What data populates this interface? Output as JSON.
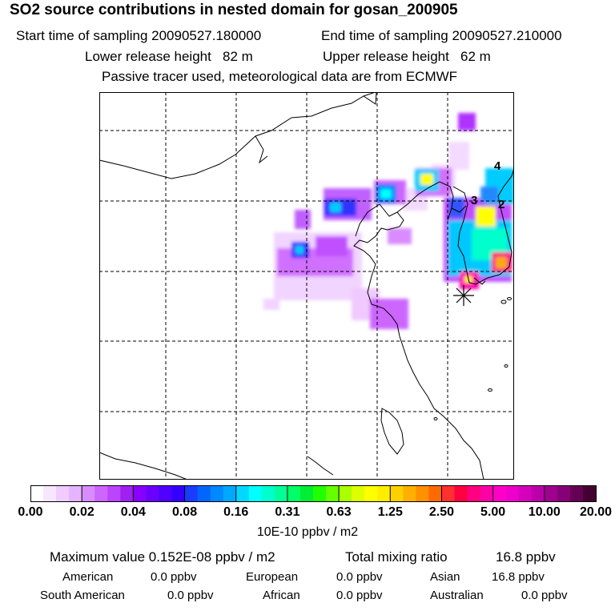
{
  "header": {
    "title": "SO2 source contributions in nested domain for gosan_200905",
    "start_label": "Start time of sampling 20090527.180000",
    "end_label": "End time of sampling 20090527.210000",
    "lower_label": "Lower release height   82 m",
    "upper_label": "Upper release height   62 m",
    "note": "Passive tracer used, meteorological data are from ECMWF"
  },
  "map": {
    "region_labels": [
      "4",
      "3",
      "2"
    ],
    "receptor_marker": "asterisk-icon"
  },
  "colorbar": {
    "ticks": [
      "0.00",
      "0.02",
      "0.04",
      "0.08",
      "0.16",
      "0.31",
      "0.63",
      "1.25",
      "2.50",
      "5.00",
      "10.00",
      "20.00"
    ],
    "unit": "10E-10 ppbv / m2",
    "colors": [
      "#ffffff",
      "#f7e6ff",
      "#f0ccff",
      "#e6b3ff",
      "#d98cff",
      "#cc66ff",
      "#bb44ff",
      "#a020f0",
      "#8800ff",
      "#6a00ff",
      "#4f00ff",
      "#3300ff",
      "#1a3cff",
      "#0066ff",
      "#0088ff",
      "#00a8ff",
      "#00d8ff",
      "#00ffff",
      "#00ffcc",
      "#00ff99",
      "#00ff66",
      "#00ee33",
      "#22ff00",
      "#66ff00",
      "#aaff00",
      "#ddff00",
      "#ffff00",
      "#ffee00",
      "#ffd000",
      "#ffb000",
      "#ff9000",
      "#ff6a00",
      "#ff3030",
      "#ff0040",
      "#ff0080",
      "#ff00a8",
      "#ff00c8",
      "#ee00cc",
      "#d400bb",
      "#bb00aa",
      "#a00090",
      "#880077",
      "#660055",
      "#440033"
    ]
  },
  "stats": {
    "max_label": "Maximum value  0.152E-08 ppbv / m2",
    "total_label": "Total mixing ratio",
    "total_value": "16.8 ppbv",
    "american_label": "American",
    "american_value": "0.0 ppbv",
    "european_label": "European",
    "european_value": "0.0 ppbv",
    "asian_label": "Asian",
    "asian_value": "16.8 ppbv",
    "south_american_label": "South American",
    "south_american_value": "0.0 ppbv",
    "african_label": "African",
    "african_value": "0.0 ppbv",
    "australian_label": "Australian",
    "australian_value": "0.0 ppbv"
  }
}
